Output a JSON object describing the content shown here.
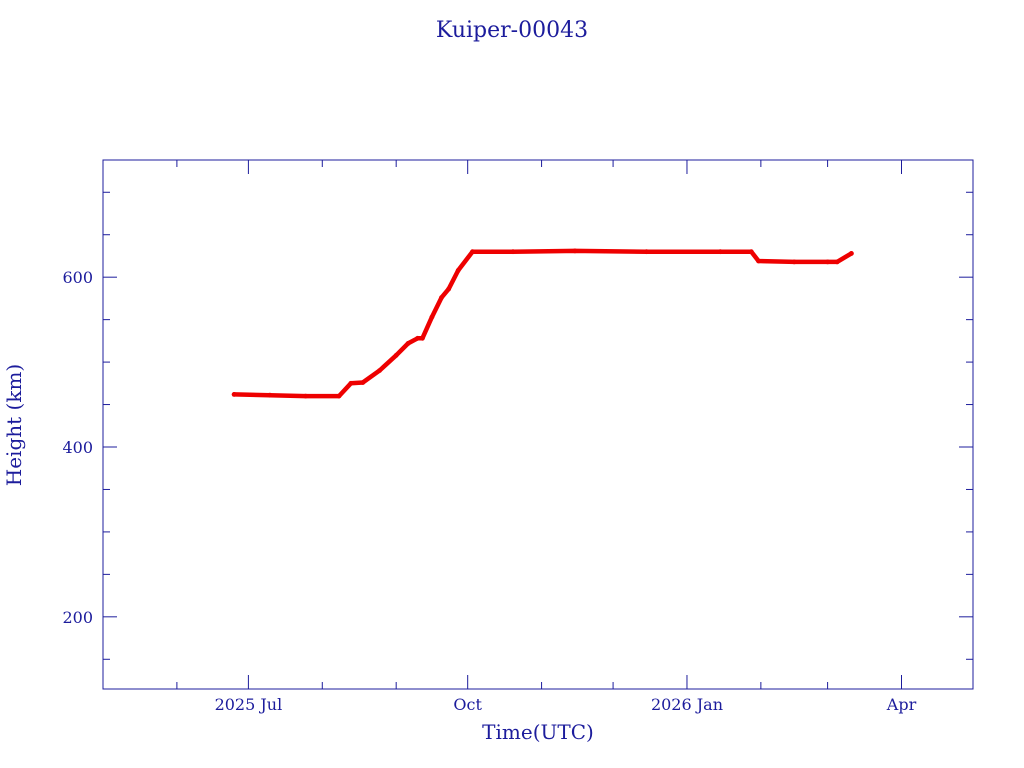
{
  "chart_data": {
    "type": "line",
    "title": "Kuiper-00043",
    "xlabel": "Time(UTC)",
    "ylabel": "Height (km)",
    "x_axis_type": "date",
    "xlim": [
      "2025-05-01",
      "2026-05-01"
    ],
    "ylim": [
      115,
      738
    ],
    "x_major_ticks": [
      {
        "date": "2025-07-01",
        "label": "2025 Jul"
      },
      {
        "date": "2025-10-01",
        "label": "Oct"
      },
      {
        "date": "2026-01-01",
        "label": "2026 Jan"
      },
      {
        "date": "2026-04-01",
        "label": "Apr"
      }
    ],
    "x_minor_ticks": [
      "2025-06-01",
      "2025-08-01",
      "2025-09-01",
      "2025-11-01",
      "2025-12-01",
      "2026-02-01",
      "2026-03-01"
    ],
    "y_major_ticks": [
      200,
      400,
      600
    ],
    "y_minor_ticks": [
      150,
      250,
      300,
      350,
      450,
      500,
      550,
      650,
      700
    ],
    "grid": false,
    "legend": "none",
    "series": [
      {
        "color": "#ee0000",
        "points": [
          {
            "x": "2025-06-25",
            "y": 462
          },
          {
            "x": "2025-07-10",
            "y": 461
          },
          {
            "x": "2025-07-25",
            "y": 460
          },
          {
            "x": "2025-08-08",
            "y": 460
          },
          {
            "x": "2025-08-13",
            "y": 475
          },
          {
            "x": "2025-08-18",
            "y": 476
          },
          {
            "x": "2025-08-25",
            "y": 490
          },
          {
            "x": "2025-09-01",
            "y": 508
          },
          {
            "x": "2025-09-06",
            "y": 522
          },
          {
            "x": "2025-09-10",
            "y": 528
          },
          {
            "x": "2025-09-12",
            "y": 528
          },
          {
            "x": "2025-09-16",
            "y": 553
          },
          {
            "x": "2025-09-20",
            "y": 576
          },
          {
            "x": "2025-09-23",
            "y": 586
          },
          {
            "x": "2025-09-27",
            "y": 608
          },
          {
            "x": "2025-10-03",
            "y": 630
          },
          {
            "x": "2025-10-20",
            "y": 630
          },
          {
            "x": "2025-11-15",
            "y": 631
          },
          {
            "x": "2025-12-15",
            "y": 630
          },
          {
            "x": "2026-01-15",
            "y": 630
          },
          {
            "x": "2026-01-28",
            "y": 630
          },
          {
            "x": "2026-01-31",
            "y": 619
          },
          {
            "x": "2026-02-15",
            "y": 618
          },
          {
            "x": "2026-03-01",
            "y": 618
          },
          {
            "x": "2026-03-05",
            "y": 618
          },
          {
            "x": "2026-03-11",
            "y": 628
          }
        ]
      }
    ]
  }
}
